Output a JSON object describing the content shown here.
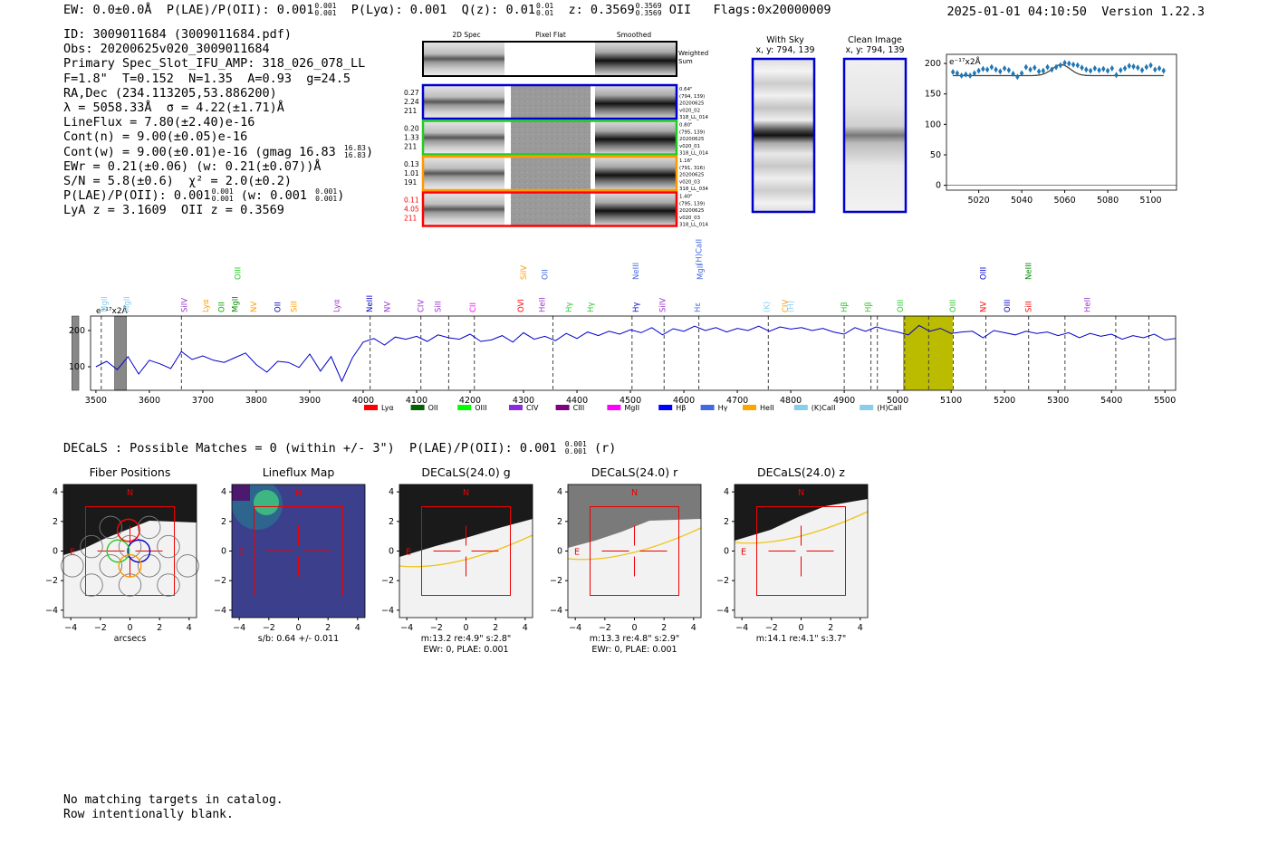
{
  "header": {
    "ew": "EW: 0.0±0.0Å",
    "plae_label": "P(LAE)/P(OII): 0.001",
    "plae_hi": "0.001",
    "plae_lo": "0.001",
    "plya": "P(Lyα): 0.001",
    "qz_label": "Q(z): 0.01",
    "qz_hi": "0.01",
    "qz_lo": "0.01",
    "z_label": "z: 0.3569",
    "z_hi": "0.3569",
    "z_lo": "0.3569",
    "z_line": "OII",
    "flags": "Flags:0x20000009",
    "timestamp": "2025-01-01 04:10:50",
    "version": "Version 1.22.3"
  },
  "info": {
    "id": "ID: 3009011684 (3009011684.pdf)",
    "obs": "Obs: 20200625v020_3009011684",
    "primary": "Primary Spec_Slot_IFU_AMP: 318_026_078_LL",
    "params": "F=1.8\"  T=0.152  N=1.35  A=0.93  g=24.5",
    "radec": "RA,Dec (234.113205,53.886200)",
    "lambda": "λ = 5058.33Å  σ = 4.22(±1.71)Å",
    "lineflux": "LineFlux = 7.80(±2.40)e-16",
    "contn": "Cont(n) = 9.00(±0.05)e-16",
    "contw": "Cont(w) = 9.00(±0.01)e-16 (gmag 16.83",
    "contw_hi": "16.83",
    "contw_lo": "16.83",
    "ewr": "EWr = 0.21(±0.06) (w: 0.21(±0.07))Å",
    "sn": "S/N = 5.8(±0.6)  χ² = 2.0(±0.2)",
    "plae": "P(LAE)/P(OII): 0.001",
    "plae_w": "(w: 0.001",
    "plae_hi": "0.001",
    "plae_lo": "0.001",
    "lyaz": "LyA z = 3.1609  OII z = 0.3569"
  },
  "cutouts": {
    "col_headers": [
      "2D Spec",
      "Pixel Flat",
      "Smoothed"
    ],
    "weighted": [
      "Weighted",
      "Sum"
    ],
    "rows": [
      {
        "color": "#0000cc",
        "vals": [
          "0.27",
          "2.24",
          "211"
        ],
        "meta": [
          "0.64\"",
          "(794, 139)",
          "20200625",
          "v020_02",
          "318_LL_014"
        ],
        "val_color": "#000"
      },
      {
        "color": "#22cc22",
        "vals": [
          "0.20",
          "1.33",
          "211"
        ],
        "meta": [
          "0.80\"",
          "(795, 139)",
          "20200625",
          "v020_01",
          "318_LL_014"
        ],
        "val_color": "#000"
      },
      {
        "color": "#ff9900",
        "vals": [
          "0.13",
          "1.01",
          "191"
        ],
        "meta": [
          "1.16\"",
          "(791, 316)",
          "20200625",
          "v020_03",
          "318_LL_034"
        ],
        "val_color": "#000"
      },
      {
        "color": "#ff0000",
        "vals": [
          "0.11",
          "4.05",
          "211"
        ],
        "meta": [
          "1.40\"",
          "(795, 139)",
          "20200625",
          "v020_03",
          "318_LL_014"
        ],
        "val_color": "#ff0000"
      }
    ]
  },
  "sky_panels": {
    "with_sky": [
      "With Sky",
      "x, y: 794, 139"
    ],
    "clean": [
      "Clean Image",
      "x, y: 794, 139"
    ]
  },
  "colors": {
    "spectrum": "#0000cc",
    "zoom_series": "#1f77b4",
    "highlight": "#bbbb00",
    "label_red": "#ff0000"
  },
  "chart_data": [
    {
      "type": "scatter",
      "name": "zoom-spectrum",
      "ylabel": "e⁻¹⁷x2Å",
      "xlim": [
        5005,
        5112
      ],
      "ylim": [
        -8,
        215
      ],
      "xticks": [
        5020,
        5040,
        5060,
        5080,
        5100
      ],
      "yticks": [
        0,
        50,
        100,
        150,
        200
      ],
      "x": [
        5008,
        5010,
        5012,
        5014,
        5016,
        5018,
        5020,
        5022,
        5024,
        5026,
        5028,
        5030,
        5032,
        5034,
        5036,
        5038,
        5040,
        5042,
        5044,
        5046,
        5048,
        5050,
        5052,
        5054,
        5056,
        5058,
        5060,
        5062,
        5064,
        5066,
        5068,
        5070,
        5072,
        5074,
        5076,
        5078,
        5080,
        5082,
        5084,
        5086,
        5088,
        5090,
        5092,
        5094,
        5096,
        5098,
        5100,
        5102,
        5104,
        5106
      ],
      "y": [
        186,
        184,
        180,
        182,
        180,
        184,
        188,
        191,
        190,
        194,
        190,
        187,
        192,
        189,
        183,
        178,
        184,
        194,
        190,
        193,
        187,
        188,
        194,
        190,
        194,
        197,
        201,
        200,
        198,
        197,
        193,
        190,
        188,
        192,
        189,
        191,
        188,
        192,
        181,
        189,
        192,
        196,
        195,
        193,
        189,
        194,
        197,
        190,
        192,
        188
      ],
      "fit": {
        "continuum": 180,
        "peak_x": 5058.33,
        "sigma": 4.22,
        "amplitude": 18
      }
    },
    {
      "type": "line",
      "name": "full-spectrum",
      "ylabel": "e⁻¹⁷x2Å",
      "xlim": [
        3490,
        5520
      ],
      "ylim": [
        35,
        240
      ],
      "xticks": [
        3500,
        3600,
        3700,
        3800,
        3900,
        4000,
        4100,
        4200,
        4300,
        4400,
        4500,
        4600,
        4700,
        4800,
        4900,
        5000,
        5100,
        5200,
        5300,
        5400,
        5500
      ],
      "yticks": [
        100,
        200
      ],
      "x": [
        3500,
        3520,
        3540,
        3560,
        3580,
        3600,
        3620,
        3640,
        3660,
        3680,
        3700,
        3720,
        3740,
        3760,
        3780,
        3800,
        3820,
        3840,
        3860,
        3880,
        3900,
        3920,
        3940,
        3960,
        3980,
        4000,
        4020,
        4040,
        4060,
        4080,
        4100,
        4120,
        4140,
        4160,
        4180,
        4200,
        4220,
        4240,
        4260,
        4280,
        4300,
        4320,
        4340,
        4360,
        4380,
        4400,
        4420,
        4440,
        4460,
        4480,
        4500,
        4520,
        4540,
        4560,
        4580,
        4600,
        4620,
        4640,
        4660,
        4680,
        4700,
        4720,
        4740,
        4760,
        4780,
        4800,
        4820,
        4840,
        4860,
        4880,
        4900,
        4920,
        4940,
        4960,
        4980,
        5000,
        5020,
        5040,
        5060,
        5080,
        5100,
        5120,
        5140,
        5160,
        5180,
        5200,
        5220,
        5240,
        5260,
        5280,
        5300,
        5320,
        5340,
        5360,
        5380,
        5400,
        5420,
        5440,
        5460,
        5480,
        5500,
        5520
      ],
      "y": [
        100,
        115,
        92,
        128,
        80,
        118,
        108,
        95,
        142,
        120,
        130,
        118,
        112,
        125,
        138,
        106,
        85,
        115,
        112,
        98,
        135,
        88,
        128,
        60,
        125,
        168,
        178,
        160,
        182,
        176,
        184,
        170,
        188,
        180,
        176,
        190,
        170,
        174,
        186,
        168,
        194,
        176,
        184,
        172,
        192,
        178,
        196,
        186,
        198,
        190,
        202,
        194,
        208,
        188,
        205,
        198,
        212,
        200,
        208,
        196,
        206,
        200,
        212,
        198,
        210,
        204,
        208,
        200,
        206,
        196,
        190,
        208,
        198,
        210,
        202,
        196,
        188,
        214,
        198,
        206,
        192,
        196,
        198,
        180,
        200,
        194,
        188,
        198,
        192,
        196,
        186,
        194,
        180,
        192,
        184,
        190,
        176,
        186,
        180,
        190,
        174,
        178
      ],
      "highlight_range": [
        5010,
        5103
      ],
      "centroid": 5058.33,
      "masked": [
        [
          3535,
          3557
        ],
        [
          3455,
          3468
        ]
      ],
      "lines": [
        {
          "x": 3515,
          "label": "MgII",
          "color": "#87ceeb",
          "row": 0
        },
        {
          "x": 3558,
          "label": "MgII",
          "color": "#87ceeb",
          "row": 0
        },
        {
          "x": 3665,
          "label": "SiIV",
          "color": "#9932cc",
          "row": 0
        },
        {
          "x": 3705,
          "label": "Lyα",
          "color": "#ff9900",
          "row": 0
        },
        {
          "x": 3735,
          "label": "OII",
          "color": "#00aa00",
          "row": 0
        },
        {
          "x": 3760,
          "label": "MgII",
          "color": "#008800",
          "row": 0
        },
        {
          "x": 3765,
          "label": "OIII",
          "color": "#22cc22",
          "row": 2
        },
        {
          "x": 3795,
          "label": "NV",
          "color": "#ff9900",
          "row": 0
        },
        {
          "x": 3840,
          "label": "OII",
          "color": "#0000cc",
          "row": 0
        },
        {
          "x": 3870,
          "label": "SiII",
          "color": "#ff9900",
          "row": 0
        },
        {
          "x": 3950,
          "label": "Lyα",
          "color": "#9932cc",
          "row": 0
        },
        {
          "x": 4012,
          "label": "NeIII",
          "color": "#0000cc",
          "row": 0
        },
        {
          "x": 4045,
          "label": "NV",
          "color": "#9932cc",
          "row": 0
        },
        {
          "x": 4108,
          "label": "CIV",
          "color": "#9932cc",
          "row": 0
        },
        {
          "x": 4140,
          "label": "SiII",
          "color": "#9932cc",
          "row": 0
        },
        {
          "x": 4205,
          "label": "CII",
          "color": "#ff00ff",
          "row": 0
        },
        {
          "x": 4295,
          "label": "OVI",
          "color": "#ff0000",
          "row": 0
        },
        {
          "x": 4300,
          "label": "SiIV",
          "color": "#ff9900",
          "row": 2
        },
        {
          "x": 4335,
          "label": "HeII",
          "color": "#9932cc",
          "row": 0
        },
        {
          "x": 4340,
          "label": "OII",
          "color": "#4169e1",
          "row": 2
        },
        {
          "x": 4385,
          "label": "Hγ",
          "color": "#22cc22",
          "row": 0
        },
        {
          "x": 4425,
          "label": "Hγ",
          "color": "#22cc22",
          "row": 0
        },
        {
          "x": 4510,
          "label": "Hγ",
          "color": "#0000cc",
          "row": 0
        },
        {
          "x": 4510,
          "label": "NeIII",
          "color": "#4169e1",
          "row": 2
        },
        {
          "x": 4560,
          "label": "SiIV",
          "color": "#9932cc",
          "row": 0
        },
        {
          "x": 4625,
          "label": "Hε",
          "color": "#4169e1",
          "row": 0
        },
        {
          "x": 4628,
          "label": "(H)CaII",
          "color": "#4169e1",
          "row": 3
        },
        {
          "x": 4630,
          "label": "MgII",
          "color": "#4169e1",
          "row": 2
        },
        {
          "x": 4755,
          "label": "(K)",
          "color": "#87ceeb",
          "row": 0
        },
        {
          "x": 4790,
          "label": "CIV",
          "color": "#ff9900",
          "row": 0
        },
        {
          "x": 4800,
          "label": "(H)",
          "color": "#87ceeb",
          "row": 0
        },
        {
          "x": 4900,
          "label": "Hβ",
          "color": "#22cc22",
          "row": 0
        },
        {
          "x": 4945,
          "label": "Hβ",
          "color": "#22cc22",
          "row": 0
        },
        {
          "x": 5005,
          "label": "OIII",
          "color": "#22cc22",
          "row": 0
        },
        {
          "x": 5103,
          "label": "OIII",
          "color": "#22cc22",
          "row": 0
        },
        {
          "x": 5160,
          "label": "NV",
          "color": "#ff0000",
          "row": 0
        },
        {
          "x": 5160,
          "label": "OIII",
          "color": "#0000cc",
          "row": 2
        },
        {
          "x": 5205,
          "label": "OIII",
          "color": "#0000cc",
          "row": 0
        },
        {
          "x": 5245,
          "label": "SiII",
          "color": "#ff0000",
          "row": 0
        },
        {
          "x": 5245,
          "label": "NeIII",
          "color": "#008800",
          "row": 2
        },
        {
          "x": 5355,
          "label": "HeII",
          "color": "#9932cc",
          "row": 0
        }
      ],
      "dashed_lines": [
        3510,
        3660,
        4013,
        4108,
        4160,
        4208,
        4355,
        4503,
        4563,
        4628,
        4758,
        4900,
        4950,
        4962,
        5013,
        5058,
        5104,
        5165,
        5245,
        5313,
        5408,
        5470
      ],
      "legend": [
        {
          "label": "Lyα",
          "color": "#ff0000"
        },
        {
          "label": "OII",
          "color": "#006400"
        },
        {
          "label": "OIII",
          "color": "#00ff00"
        },
        {
          "label": "CIV",
          "color": "#8a2be2"
        },
        {
          "label": "CIII",
          "color": "#800080"
        },
        {
          "label": "MgII",
          "color": "#ff00ff"
        },
        {
          "label": "Hβ",
          "color": "#0000ff"
        },
        {
          "label": "Hγ",
          "color": "#4169e1"
        },
        {
          "label": "HeII",
          "color": "#ffa500"
        },
        {
          "label": "(K)CaII",
          "color": "#87ceeb"
        },
        {
          "label": "(H)CaII",
          "color": "#87ceeb"
        }
      ]
    }
  ],
  "decals": {
    "title": "DECaLS : Possible Matches = 0 (within +/- 3\")  P(LAE)/P(OII): 0.001",
    "title_hi": "0.001",
    "title_lo": "0.001",
    "title_band": "(r)",
    "axis_ticks": [
      "4",
      "2",
      "0",
      "−2",
      "−4"
    ],
    "x_ticks": [
      "−4",
      "−2",
      "0",
      "2",
      "4"
    ],
    "north": "N",
    "east": "E",
    "panels": [
      {
        "title": "Fiber Positions",
        "captions": [
          "arcsecs"
        ]
      },
      {
        "title": "Lineflux Map",
        "captions": [
          "s/b: 0.64 +/- 0.011"
        ]
      },
      {
        "title": "DECaLS(24.0) g",
        "captions": [
          "m:13.2  re:4.9\"  s:2.8\"",
          "EWr: 0, PLAE: 0.001"
        ]
      },
      {
        "title": "DECaLS(24.0) r",
        "captions": [
          "m:13.3  re:4.8\"  s:2.9\"",
          "EWr: 0, PLAE: 0.001"
        ]
      },
      {
        "title": "DECaLS(24.0) z",
        "captions": [
          "m:14.1  re:4.1\"  s:3.7\""
        ]
      }
    ]
  },
  "footer": {
    "line1": "No matching targets in catalog.",
    "line2": "Row intentionally blank."
  }
}
